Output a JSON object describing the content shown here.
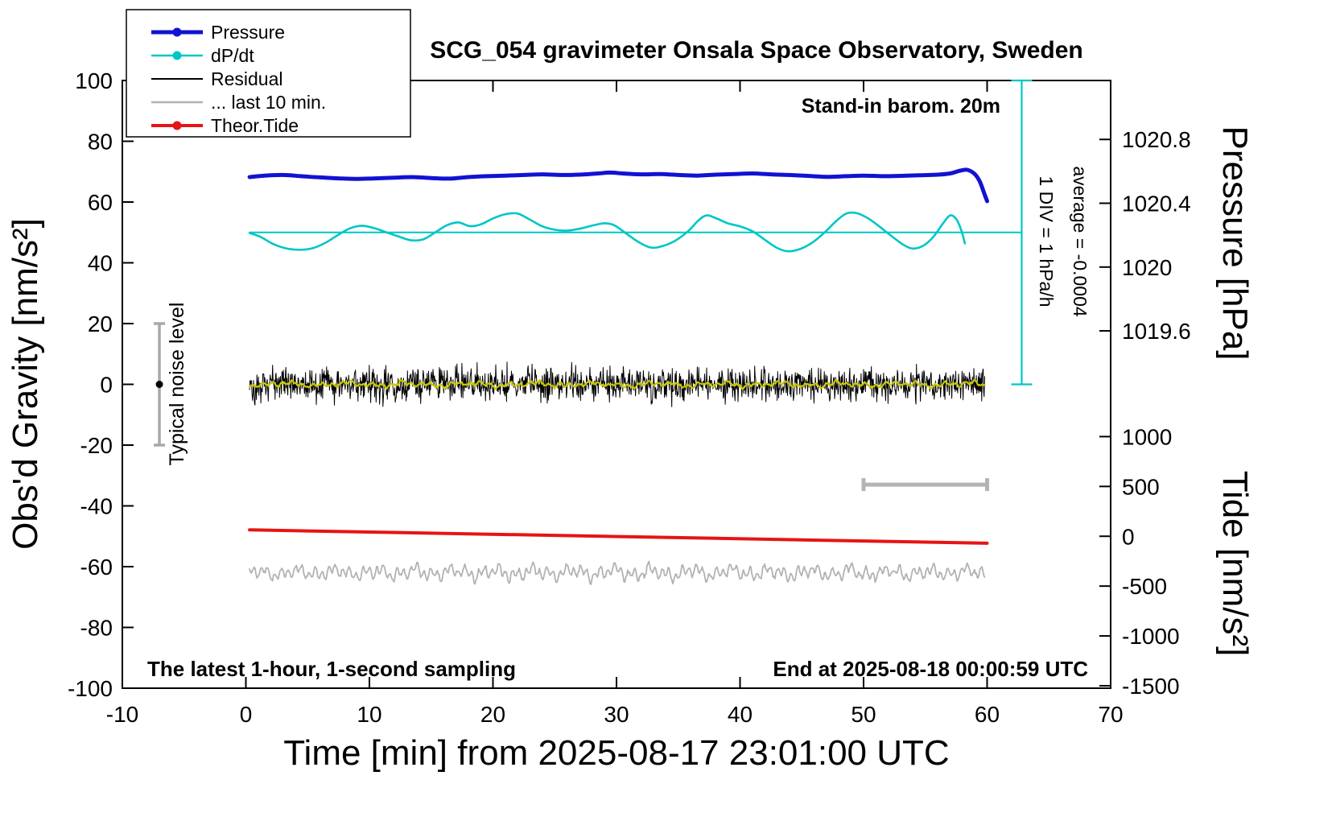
{
  "title": "SCG_054 gravimeter Onsala Space Observatory, Sweden",
  "legend": {
    "items": [
      {
        "label": "Pressure",
        "color": "#1212d2",
        "width": 5,
        "dot": true
      },
      {
        "label": "dP/dt",
        "color": "#00c6c6",
        "width": 2.6,
        "dot": true
      },
      {
        "label": "Residual",
        "color": "#000000",
        "width": 2,
        "dot": false
      },
      {
        "label": "... last 10 min.",
        "color": "#b2b2b2",
        "width": 2.6,
        "dot": false
      },
      {
        "label": "Theor.Tide",
        "color": "#e61414",
        "width": 4,
        "dot": true
      }
    ]
  },
  "annotations": {
    "stand_in": "Stand-in barom. 20m",
    "div_scale": "1 DIV = 1 hPa/h",
    "average": "average = -0.0004",
    "noise_level": "Typical noise level",
    "sampling": "The latest 1-hour, 1-second sampling",
    "end_time": "End at 2025-08-18 00:00:59 UTC"
  },
  "axes": {
    "x": {
      "label": "Time [min] from 2025-08-17 23:01:00 UTC",
      "min": -10,
      "max": 70,
      "ticks": [
        -10,
        0,
        10,
        20,
        30,
        40,
        50,
        60,
        70
      ]
    },
    "y_left": {
      "label": "Obs'd Gravity [nm/s²]",
      "min": -100,
      "max": 100,
      "ticks": [
        -100,
        -80,
        -60,
        -40,
        -20,
        0,
        20,
        40,
        60,
        80,
        100
      ]
    },
    "y_right_pressure": {
      "label": "Pressure [hPa]",
      "ticks": [
        {
          "label": "1020.8",
          "at": 80.6
        },
        {
          "label": "1020.4",
          "at": 59.6
        },
        {
          "label": "1020",
          "at": 38.6
        },
        {
          "label": "1019.6",
          "at": 17.6
        }
      ]
    },
    "y_right_tide": {
      "label": "Tide [nm/s²]",
      "ticks": [
        {
          "label": "1000",
          "at": -17.2
        },
        {
          "label": "500",
          "at": -33.6
        },
        {
          "label": "0",
          "at": -50.0
        },
        {
          "label": "-500",
          "at": -66.4
        },
        {
          "label": "-1000",
          "at": -82.8
        },
        {
          "label": "-1500",
          "at": -99.2
        }
      ]
    }
  },
  "chart_data": {
    "type": "line",
    "title": "SCG_054 gravimeter Onsala Space Observatory, Sweden",
    "xlabel": "Time [min] from 2025-08-17 23:01:00 UTC",
    "ylabel": "Obs'd Gravity [nm/s²]",
    "xlim": [
      -10,
      70
    ],
    "ylim": [
      -100,
      100
    ],
    "grid": false,
    "legend_position": "top-left",
    "series": [
      {
        "name": "Pressure",
        "units": "gravity-axis equivalent (≈1020.55 hPa level)",
        "color": "#1212d2",
        "width": 5,
        "style": "smooth",
        "points": [
          [
            0.3,
            68.2
          ],
          [
            1.5,
            68.7
          ],
          [
            3,
            68.9
          ],
          [
            4.5,
            68.5
          ],
          [
            6,
            68.1
          ],
          [
            7.5,
            67.8
          ],
          [
            9,
            67.6
          ],
          [
            10.5,
            67.8
          ],
          [
            12,
            68.0
          ],
          [
            13.5,
            68.2
          ],
          [
            15,
            67.9
          ],
          [
            16.5,
            67.7
          ],
          [
            18,
            68.2
          ],
          [
            19.5,
            68.5
          ],
          [
            21,
            68.7
          ],
          [
            22.5,
            68.9
          ],
          [
            24,
            69.1
          ],
          [
            25.5,
            68.9
          ],
          [
            27,
            69.0
          ],
          [
            28.5,
            69.4
          ],
          [
            29.5,
            69.7
          ],
          [
            30.5,
            69.4
          ],
          [
            32,
            69.1
          ],
          [
            33.5,
            69.2
          ],
          [
            35,
            68.9
          ],
          [
            36.5,
            68.7
          ],
          [
            38,
            69.0
          ],
          [
            39.5,
            69.2
          ],
          [
            41,
            69.4
          ],
          [
            42.5,
            69.1
          ],
          [
            44,
            68.9
          ],
          [
            45.5,
            68.6
          ],
          [
            47,
            68.3
          ],
          [
            48.5,
            68.5
          ],
          [
            50,
            68.7
          ],
          [
            51.5,
            68.5
          ],
          [
            53,
            68.6
          ],
          [
            54.5,
            68.8
          ],
          [
            56,
            69.0
          ],
          [
            57,
            69.4
          ],
          [
            57.8,
            70.3
          ],
          [
            58.4,
            70.6
          ],
          [
            59,
            69.2
          ],
          [
            59.4,
            66.8
          ],
          [
            59.8,
            62.5
          ],
          [
            60,
            60.3
          ]
        ]
      },
      {
        "name": "dP/dt",
        "color": "#00c6c6",
        "width": 2.6,
        "style": "smooth",
        "points": [
          [
            0.3,
            49.8
          ],
          [
            1.2,
            48.5
          ],
          [
            2.2,
            46.2
          ],
          [
            3.2,
            44.8
          ],
          [
            4.3,
            44.3
          ],
          [
            5.4,
            44.8
          ],
          [
            6.4,
            46.5
          ],
          [
            7.4,
            49.0
          ],
          [
            8.4,
            51.3
          ],
          [
            9.4,
            52.2
          ],
          [
            10.4,
            51.4
          ],
          [
            11.4,
            50.0
          ],
          [
            12.4,
            48.6
          ],
          [
            13.4,
            47.4
          ],
          [
            14.4,
            47.8
          ],
          [
            15.4,
            50.2
          ],
          [
            16.3,
            52.4
          ],
          [
            17.2,
            53.3
          ],
          [
            18.1,
            52.1
          ],
          [
            19.0,
            52.6
          ],
          [
            20.0,
            54.6
          ],
          [
            21.0,
            56.0
          ],
          [
            22.0,
            56.2
          ],
          [
            23.0,
            54.2
          ],
          [
            24.0,
            52.0
          ],
          [
            25.0,
            50.9
          ],
          [
            26.0,
            50.6
          ],
          [
            27.0,
            51.2
          ],
          [
            28.0,
            52.2
          ],
          [
            29.0,
            53.0
          ],
          [
            29.8,
            52.4
          ],
          [
            30.8,
            49.6
          ],
          [
            31.8,
            46.8
          ],
          [
            32.8,
            45.0
          ],
          [
            33.8,
            45.6
          ],
          [
            34.8,
            47.4
          ],
          [
            35.8,
            50.4
          ],
          [
            36.6,
            53.8
          ],
          [
            37.3,
            55.6
          ],
          [
            38.1,
            54.6
          ],
          [
            39.0,
            53.0
          ],
          [
            40.0,
            52.0
          ],
          [
            41.0,
            50.4
          ],
          [
            42.0,
            47.6
          ],
          [
            43.0,
            44.9
          ],
          [
            43.9,
            43.8
          ],
          [
            44.9,
            44.6
          ],
          [
            45.9,
            46.8
          ],
          [
            46.9,
            50.2
          ],
          [
            47.8,
            53.8
          ],
          [
            48.6,
            56.2
          ],
          [
            49.4,
            56.4
          ],
          [
            50.3,
            54.8
          ],
          [
            51.2,
            52.2
          ],
          [
            52.2,
            49.0
          ],
          [
            53.2,
            46.0
          ],
          [
            54.0,
            44.7
          ],
          [
            54.9,
            45.8
          ],
          [
            55.7,
            48.8
          ],
          [
            56.4,
            52.8
          ],
          [
            57.0,
            55.6
          ],
          [
            57.5,
            54.4
          ],
          [
            57.9,
            50.8
          ],
          [
            58.2,
            46.4
          ]
        ]
      },
      {
        "name": "dP/dt mean line",
        "color": "#00c6c6",
        "width": 2,
        "style": "line",
        "points": [
          [
            0.3,
            50
          ],
          [
            62.8,
            50
          ]
        ]
      },
      {
        "name": "Residual",
        "color": "#000000",
        "width": 1,
        "style": "noise",
        "seed": 20250818,
        "n": 1500,
        "x0": 0.3,
        "x1": 59.8,
        "base": 0,
        "amplitude": 4.0
      },
      {
        "name": "Residual running mean",
        "color": "#c8c800",
        "width": 2.2,
        "style": "wave",
        "seed": 11,
        "n": 700,
        "x0": 0.3,
        "x1": 59.8,
        "base": 0,
        "amplitude": 1.0,
        "periods": [
          0.8,
          2.2,
          5.0
        ],
        "weights": [
          0.5,
          0.4,
          0.35
        ],
        "jitter": 0.8
      },
      {
        "name": "... last 10 min.",
        "color": "#b2b2b2",
        "width": 1.8,
        "style": "wave",
        "seed": 7,
        "n": 800,
        "x0": 0.3,
        "x1": 59.8,
        "base": -62,
        "amplitude": 2.5,
        "periods": [
          0.55,
          1.35,
          3.2
        ],
        "weights": [
          0.55,
          0.45,
          0.35
        ],
        "jitter": 0.5
      },
      {
        "name": "Theor.Tide",
        "color": "#e61414",
        "width": 4,
        "style": "line",
        "points": [
          [
            0.3,
            -47.9
          ],
          [
            60,
            -52.3
          ]
        ]
      }
    ],
    "markers": {
      "div_indicator": {
        "x": 62.8,
        "y_from": 0,
        "y_to": 100,
        "cap_half": 13,
        "color": "#00c6c6",
        "width": 2.2
      },
      "scale_bar": {
        "x_from": 50,
        "x_to": 60,
        "y": -33,
        "cap_half": 8,
        "color": "#b4b4b4",
        "width": 5
      },
      "noise_errorbar": {
        "x": -7,
        "y_from": -20,
        "y_to": 20,
        "cap_half": 7,
        "dot_y": 0,
        "color": "#a8a8a8",
        "width": 3.5
      }
    }
  }
}
